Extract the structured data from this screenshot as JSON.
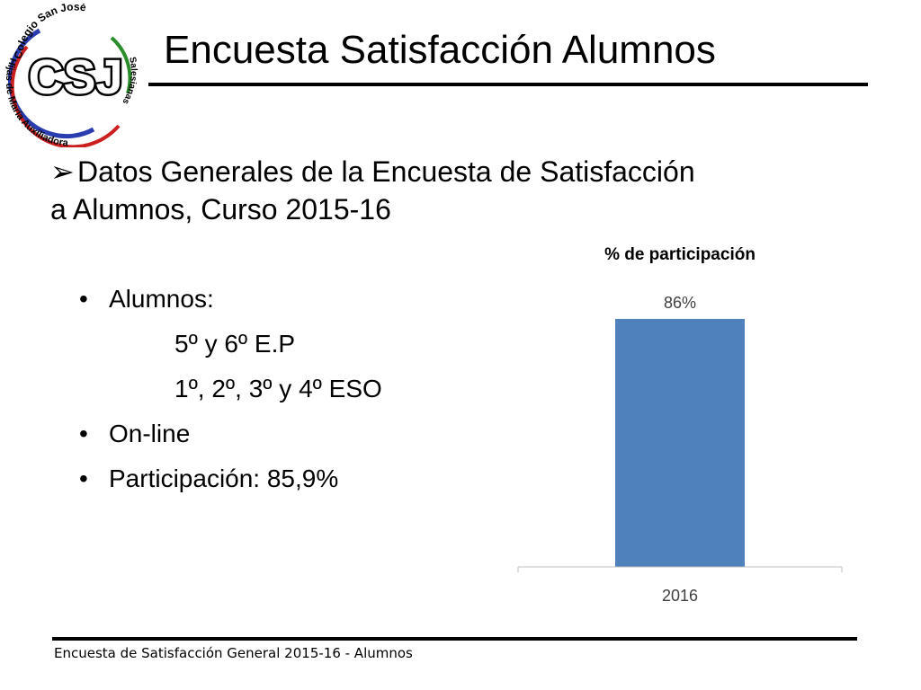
{
  "logo": {
    "text_top": "Colegio San José",
    "text_left": "Hijas de María Auxiliadora",
    "text_right": "Salesianas",
    "monogram": "CSJ"
  },
  "title": "Encuesta Satisfacción Alumnos",
  "heading": {
    "arrow": "➢",
    "line1": "Datos Generales de la Encuesta de Satisfacción",
    "line2": "a Alumnos, Curso 2015-16"
  },
  "bullets": [
    {
      "text": "Alumnos:",
      "level": 1
    },
    {
      "text": "5º y 6º E.P",
      "level": 2
    },
    {
      "text": "1º, 2º, 3º y 4º ESO",
      "level": 2
    },
    {
      "text": "On-line",
      "level": 1
    },
    {
      "text": "Participación: 85,9%",
      "level": 1
    }
  ],
  "chart_data": {
    "type": "bar",
    "title": "% de participación",
    "categories": [
      "2016"
    ],
    "values": [
      86
    ],
    "data_labels": [
      "86%"
    ],
    "ylim": [
      0,
      100
    ],
    "grid": false,
    "bar_color": "#4f81bd"
  },
  "footer": "Encuesta  de Satisfacción General 2015-16 - Alumnos"
}
